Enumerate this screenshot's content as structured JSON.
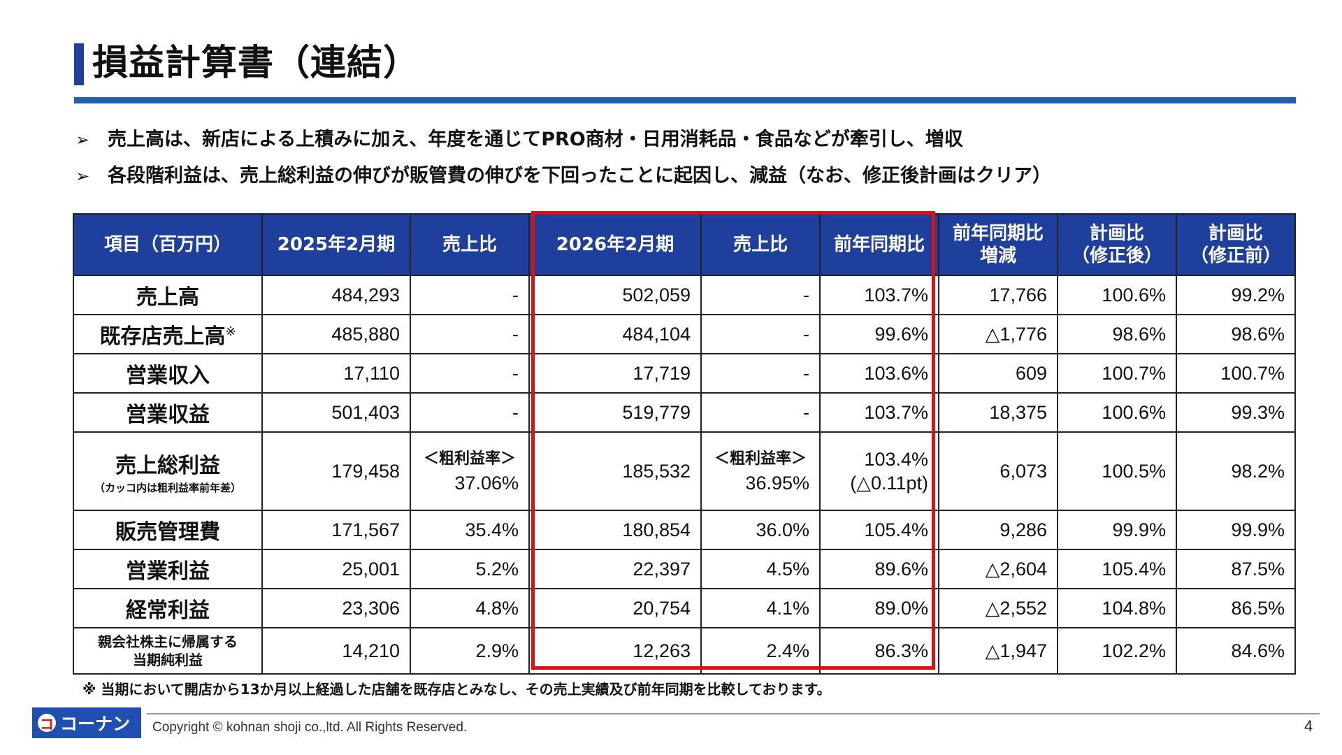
{
  "title": "損益計算書（連結）",
  "bullets": [
    "売上高は、新店による上積みに加え、年度を通じてPRO商材・日用消耗品・食品などが牽引し、増収",
    "各段階利益は、売上総利益の伸びが販管費の伸びを下回ったことに起因し、減益（なお、修正後計画はクリア）"
  ],
  "bullet_mark": "➢",
  "table": {
    "headers": {
      "item": "項目（百万円）",
      "fy2025": "2025年2月期",
      "ratio2025": "売上比",
      "fy2026": "2026年2月期",
      "ratio2026": "売上比",
      "yoy": "前年同期比",
      "yoy_diff_1": "前年同期比",
      "yoy_diff_2": "増減",
      "plan_rev_1": "計画比",
      "plan_rev_2": "（修正後）",
      "plan_orig_1": "計画比",
      "plan_orig_2": "（修正前）"
    },
    "rows": {
      "sales": {
        "label": "売上高",
        "fy2025": "484,293",
        "ratio2025": "-",
        "fy2026": "502,059",
        "ratio2026": "-",
        "yoy": "103.7%",
        "yoy_diff": "17,766",
        "plan_rev": "100.6%",
        "plan_orig": "99.2%"
      },
      "existing": {
        "label": "既存店売上高",
        "mark": "※",
        "fy2025": "485,880",
        "ratio2025": "-",
        "fy2026": "484,104",
        "ratio2026": "-",
        "yoy": "99.6%",
        "yoy_diff": "△1,776",
        "plan_rev": "98.6%",
        "plan_orig": "98.6%"
      },
      "op_income": {
        "label": "営業収入",
        "fy2025": "17,110",
        "ratio2025": "-",
        "fy2026": "17,719",
        "ratio2026": "-",
        "yoy": "103.6%",
        "yoy_diff": "609",
        "plan_rev": "100.7%",
        "plan_orig": "100.7%"
      },
      "op_revenue": {
        "label": "営業収益",
        "fy2025": "501,403",
        "ratio2025": "-",
        "fy2026": "519,779",
        "ratio2026": "-",
        "yoy": "103.7%",
        "yoy_diff": "18,375",
        "plan_rev": "100.6%",
        "plan_orig": "99.3%"
      },
      "gross": {
        "label": "売上総利益",
        "sublabel": "（カッコ内は粗利益率前年差）",
        "fy2025": "179,458",
        "gm_label": "＜粗利益率＞",
        "ratio2025": "37.06%",
        "fy2026": "185,532",
        "ratio2026": "36.95%",
        "yoy": "103.4%",
        "yoy_sub": "(△0.11pt)",
        "yoy_diff": "6,073",
        "plan_rev": "100.5%",
        "plan_orig": "98.2%"
      },
      "sga": {
        "label": "販売管理費",
        "fy2025": "171,567",
        "ratio2025": "35.4%",
        "fy2026": "180,854",
        "ratio2026": "36.0%",
        "yoy": "105.4%",
        "yoy_diff": "9,286",
        "plan_rev": "99.9%",
        "plan_orig": "99.9%"
      },
      "op_profit": {
        "label": "営業利益",
        "fy2025": "25,001",
        "ratio2025": "5.2%",
        "fy2026": "22,397",
        "ratio2026": "4.5%",
        "yoy": "89.6%",
        "yoy_diff": "△2,604",
        "plan_rev": "105.4%",
        "plan_orig": "87.5%"
      },
      "ordinary": {
        "label": "経常利益",
        "fy2025": "23,306",
        "ratio2025": "4.8%",
        "fy2026": "20,754",
        "ratio2026": "4.1%",
        "yoy": "89.0%",
        "yoy_diff": "△2,552",
        "plan_rev": "104.8%",
        "plan_orig": "86.5%"
      },
      "net": {
        "label_1": "親会社株主に帰属する",
        "label_2": "当期純利益",
        "fy2025": "14,210",
        "ratio2025": "2.9%",
        "fy2026": "12,263",
        "ratio2026": "2.4%",
        "yoy": "86.3%",
        "yoy_diff": "△1,947",
        "plan_rev": "102.2%",
        "plan_orig": "84.6%"
      }
    }
  },
  "footnote": "※ 当期において開店から13か月以上経過した店舗を既存店とみなし、その売上実績及び前年同期を比較しております。",
  "footer": {
    "logo_mark": "コ",
    "logo_text": "コーナン",
    "copyright": "Copyright © kohnan shoji co.,ltd. All Rights Reserved.",
    "page": "4"
  },
  "colors": {
    "header_bg": "#1f3f9c",
    "rule": "#1f5fad",
    "highlight": "#e01010"
  }
}
